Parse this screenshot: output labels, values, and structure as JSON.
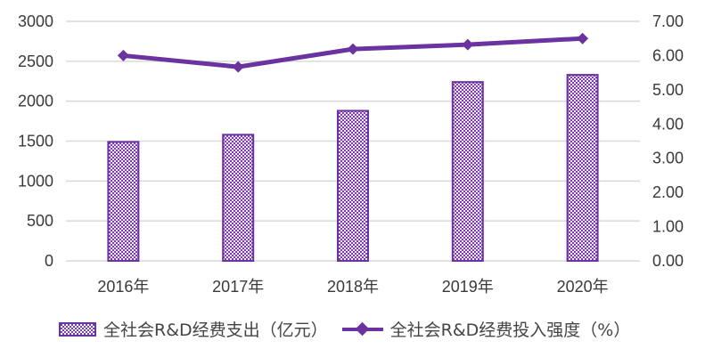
{
  "chart_data": {
    "type": "bar+line",
    "title": "",
    "categories": [
      "2016年",
      "2017年",
      "2018年",
      "2019年",
      "2020年"
    ],
    "series": [
      {
        "name": "全社会R&D经费支出（亿元）",
        "type": "bar",
        "axis": "left",
        "values": [
          1490,
          1580,
          1880,
          2240,
          2330
        ]
      },
      {
        "name": "全社会R&D经费投入强度（%）",
        "type": "line",
        "axis": "right",
        "values": [
          6.0,
          5.67,
          6.19,
          6.32,
          6.5
        ]
      }
    ],
    "left_axis": {
      "ylim": [
        0,
        3000
      ],
      "ticks": [
        "0",
        "500",
        "1000",
        "1500",
        "2000",
        "2500",
        "3000"
      ]
    },
    "right_axis": {
      "ylim": [
        0,
        7
      ],
      "ticks": [
        "0.00",
        "1.00",
        "2.00",
        "3.00",
        "4.00",
        "5.00",
        "6.00",
        "7.00"
      ]
    },
    "xlabel": "",
    "ylabel": "",
    "grid": true,
    "legend_position": "bottom",
    "colors": {
      "bar_fill": "#7a3fb0",
      "bar_border": "#6a33a0",
      "line": "#6a33a0",
      "grid": "#d9d9d9"
    }
  },
  "legend": {
    "items": [
      {
        "label": "全社会R&D经费支出（亿元）"
      },
      {
        "label": "全社会R&D经费投入强度（%）"
      }
    ]
  }
}
